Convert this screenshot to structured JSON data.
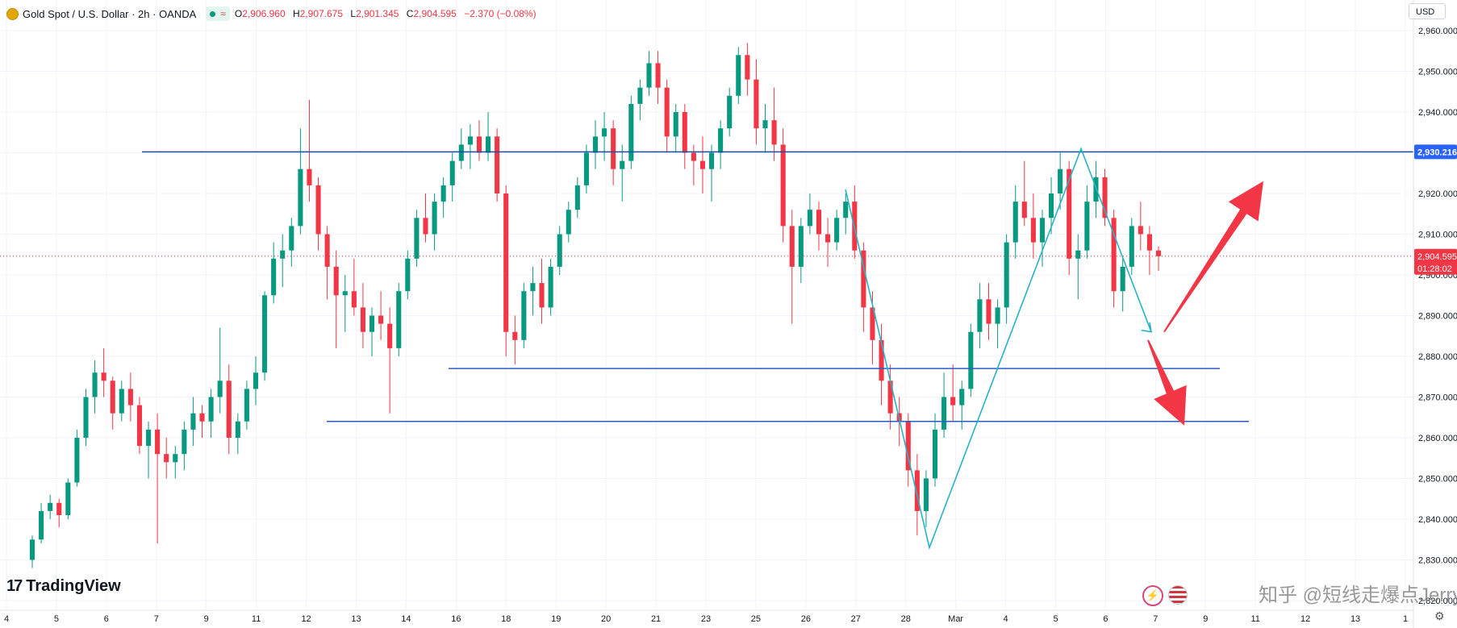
{
  "header": {
    "symbol_title": "Gold Spot / U.S. Dollar · 2h · OANDA",
    "wave_glyph": "≈",
    "o_key": "O",
    "o_val": "2,906.960",
    "h_key": "H",
    "h_val": "2,907.675",
    "l_key": "L",
    "l_val": "2,901.345",
    "c_key": "C",
    "c_val": "2,904.595",
    "change": "−2.370 (−0.08%)"
  },
  "currency": "USD",
  "logo": {
    "mark": "17",
    "text": "TradingView"
  },
  "watermark": "知乎 @短线走爆点Jerry",
  "bottom_icons": [
    "lightning-icon",
    "us-flag-icon"
  ],
  "colors": {
    "up": "#089981",
    "down": "#f23645",
    "level_line": "#1e4fa8",
    "pattern": "#26b3c7",
    "arrow": "#f23645",
    "price_tag": "#f23645",
    "level_tag": "#2962ff"
  },
  "chart_data": {
    "type": "candlestick",
    "title": "Gold Spot / U.S. Dollar · 2h · OANDA",
    "ylim": [
      2820,
      2960
    ],
    "y_ticks": [
      "2,960.000",
      "2,950.000",
      "2,940.000",
      "2,930.000",
      "2,920.000",
      "2,910.000",
      "2,900.000",
      "2,890.000",
      "2,880.000",
      "2,870.000",
      "2,860.000",
      "2,850.000",
      "2,840.000",
      "2,830.000",
      "2,820.000"
    ],
    "x_ticks": [
      "4",
      "5",
      "6",
      "7",
      "9",
      "11",
      "12",
      "13",
      "14",
      "16",
      "18",
      "19",
      "20",
      "21",
      "23",
      "25",
      "26",
      "27",
      "28",
      "Mar",
      "4",
      "5",
      "6",
      "7",
      "9",
      "11",
      "12",
      "13",
      "1"
    ],
    "grid": true,
    "current_price": {
      "value": 2904.595,
      "label": "2,904.595",
      "countdown": "01:28:02"
    },
    "resistance": {
      "value": 2930.216,
      "label": "2,930.216"
    },
    "support_levels": [
      2877,
      2864
    ],
    "pattern_path": [
      {
        "date": "Feb 26",
        "price": 2921
      },
      {
        "date": "Feb 28",
        "price": 2833
      },
      {
        "date": "Mar 5",
        "price": 2931
      },
      {
        "date": "Mar 7",
        "price": 2886
      }
    ],
    "forecast_arrows": [
      {
        "direction": "up",
        "from_price": 2886,
        "to_price": 2923
      },
      {
        "direction": "down",
        "from_price": 2884,
        "to_price": 2863
      }
    ],
    "candles": [
      [
        2830,
        2836,
        2828,
        2835
      ],
      [
        2835,
        2844,
        2834,
        2842
      ],
      [
        2842,
        2846,
        2840,
        2844
      ],
      [
        2844,
        2845,
        2838,
        2841
      ],
      [
        2841,
        2850,
        2840,
        2849
      ],
      [
        2849,
        2862,
        2848,
        2860
      ],
      [
        2860,
        2872,
        2858,
        2870
      ],
      [
        2870,
        2879,
        2866,
        2876
      ],
      [
        2876,
        2882,
        2870,
        2874
      ],
      [
        2874,
        2875,
        2862,
        2866
      ],
      [
        2866,
        2874,
        2864,
        2872
      ],
      [
        2872,
        2876,
        2864,
        2868
      ],
      [
        2868,
        2870,
        2856,
        2858
      ],
      [
        2858,
        2864,
        2850,
        2862
      ],
      [
        2862,
        2866,
        2834,
        2856
      ],
      [
        2856,
        2860,
        2850,
        2854
      ],
      [
        2854,
        2858,
        2850,
        2856
      ],
      [
        2856,
        2864,
        2852,
        2862
      ],
      [
        2862,
        2870,
        2858,
        2866
      ],
      [
        2866,
        2868,
        2860,
        2864
      ],
      [
        2864,
        2872,
        2860,
        2870
      ],
      [
        2870,
        2887,
        2866,
        2874
      ],
      [
        2874,
        2878,
        2856,
        2860
      ],
      [
        2860,
        2866,
        2856,
        2864
      ],
      [
        2864,
        2874,
        2862,
        2872
      ],
      [
        2872,
        2880,
        2868,
        2876
      ],
      [
        2876,
        2896,
        2874,
        2895
      ],
      [
        2895,
        2908,
        2893,
        2904
      ],
      [
        2904,
        2910,
        2897,
        2906
      ],
      [
        2906,
        2914,
        2902,
        2912
      ],
      [
        2912,
        2936,
        2910,
        2926
      ],
      [
        2926,
        2943,
        2918,
        2922
      ],
      [
        2922,
        2924,
        2906,
        2910
      ],
      [
        2910,
        2912,
        2894,
        2902
      ],
      [
        2902,
        2906,
        2882,
        2895
      ],
      [
        2895,
        2900,
        2886,
        2896
      ],
      [
        2896,
        2904,
        2890,
        2892
      ],
      [
        2892,
        2898,
        2882,
        2886
      ],
      [
        2886,
        2892,
        2880,
        2890
      ],
      [
        2890,
        2896,
        2884,
        2888
      ],
      [
        2888,
        2892,
        2866,
        2882
      ],
      [
        2882,
        2898,
        2880,
        2896
      ],
      [
        2896,
        2906,
        2894,
        2904
      ],
      [
        2904,
        2916,
        2902,
        2914
      ],
      [
        2914,
        2920,
        2908,
        2910
      ],
      [
        2910,
        2920,
        2906,
        2918
      ],
      [
        2918,
        2924,
        2914,
        2922
      ],
      [
        2922,
        2930,
        2918,
        2928
      ],
      [
        2928,
        2936,
        2926,
        2932
      ],
      [
        2932,
        2937,
        2926,
        2934
      ],
      [
        2934,
        2938,
        2928,
        2930
      ],
      [
        2930,
        2940,
        2928,
        2934
      ],
      [
        2934,
        2936,
        2918,
        2920
      ],
      [
        2920,
        2922,
        2880,
        2886
      ],
      [
        2886,
        2890,
        2878,
        2884
      ],
      [
        2884,
        2898,
        2882,
        2896
      ],
      [
        2896,
        2902,
        2890,
        2898
      ],
      [
        2898,
        2904,
        2888,
        2892
      ],
      [
        2892,
        2904,
        2890,
        2902
      ],
      [
        2902,
        2912,
        2900,
        2910
      ],
      [
        2910,
        2918,
        2908,
        2916
      ],
      [
        2916,
        2924,
        2914,
        2922
      ],
      [
        2922,
        2932,
        2920,
        2930
      ],
      [
        2930,
        2938,
        2926,
        2934
      ],
      [
        2934,
        2940,
        2928,
        2936
      ],
      [
        2936,
        2938,
        2922,
        2926
      ],
      [
        2926,
        2932,
        2918,
        2928
      ],
      [
        2928,
        2944,
        2926,
        2942
      ],
      [
        2942,
        2948,
        2938,
        2946
      ],
      [
        2946,
        2955,
        2944,
        2952
      ],
      [
        2952,
        2955,
        2942,
        2946
      ],
      [
        2946,
        2948,
        2930,
        2934
      ],
      [
        2934,
        2942,
        2930,
        2940
      ],
      [
        2940,
        2942,
        2926,
        2930
      ],
      [
        2930,
        2932,
        2922,
        2928
      ],
      [
        2928,
        2934,
        2920,
        2926
      ],
      [
        2926,
        2932,
        2918,
        2930
      ],
      [
        2930,
        2938,
        2926,
        2936
      ],
      [
        2936,
        2946,
        2934,
        2944
      ],
      [
        2944,
        2956,
        2942,
        2954
      ],
      [
        2954,
        2957,
        2944,
        2948
      ],
      [
        2948,
        2953,
        2932,
        2936
      ],
      [
        2936,
        2942,
        2930,
        2938
      ],
      [
        2938,
        2946,
        2928,
        2932
      ],
      [
        2932,
        2936,
        2908,
        2912
      ],
      [
        2912,
        2916,
        2888,
        2902
      ],
      [
        2902,
        2914,
        2898,
        2912
      ],
      [
        2912,
        2920,
        2910,
        2916
      ],
      [
        2916,
        2918,
        2906,
        2910
      ],
      [
        2910,
        2914,
        2902,
        2908
      ],
      [
        2908,
        2916,
        2906,
        2914
      ],
      [
        2914,
        2920,
        2910,
        2918
      ],
      [
        2918,
        2922,
        2904,
        2906
      ],
      [
        2906,
        2908,
        2886,
        2892
      ],
      [
        2892,
        2896,
        2878,
        2884
      ],
      [
        2884,
        2888,
        2868,
        2874
      ],
      [
        2874,
        2878,
        2862,
        2866
      ],
      [
        2866,
        2870,
        2858,
        2864
      ],
      [
        2864,
        2866,
        2848,
        2852
      ],
      [
        2852,
        2856,
        2836,
        2842
      ],
      [
        2842,
        2852,
        2838,
        2850
      ],
      [
        2850,
        2866,
        2848,
        2862
      ],
      [
        2862,
        2876,
        2860,
        2870
      ],
      [
        2870,
        2878,
        2864,
        2868
      ],
      [
        2868,
        2874,
        2862,
        2872
      ],
      [
        2872,
        2888,
        2870,
        2886
      ],
      [
        2886,
        2898,
        2882,
        2894
      ],
      [
        2894,
        2898,
        2884,
        2888
      ],
      [
        2888,
        2894,
        2882,
        2892
      ],
      [
        2892,
        2910,
        2888,
        2908
      ],
      [
        2908,
        2922,
        2904,
        2918
      ],
      [
        2918,
        2928,
        2912,
        2914
      ],
      [
        2914,
        2920,
        2904,
        2908
      ],
      [
        2908,
        2916,
        2902,
        2914
      ],
      [
        2914,
        2924,
        2910,
        2920
      ],
      [
        2920,
        2930,
        2916,
        2926
      ],
      [
        2926,
        2928,
        2900,
        2904
      ],
      [
        2904,
        2910,
        2894,
        2906
      ],
      [
        2906,
        2922,
        2904,
        2918
      ],
      [
        2918,
        2928,
        2914,
        2924
      ],
      [
        2924,
        2926,
        2912,
        2914
      ],
      [
        2914,
        2916,
        2892,
        2896
      ],
      [
        2896,
        2904,
        2891,
        2902
      ],
      [
        2902,
        2914,
        2900,
        2912
      ],
      [
        2912,
        2918,
        2906,
        2910
      ],
      [
        2910,
        2912,
        2900,
        2906
      ],
      [
        2906,
        2907,
        2901,
        2904.6
      ]
    ]
  }
}
